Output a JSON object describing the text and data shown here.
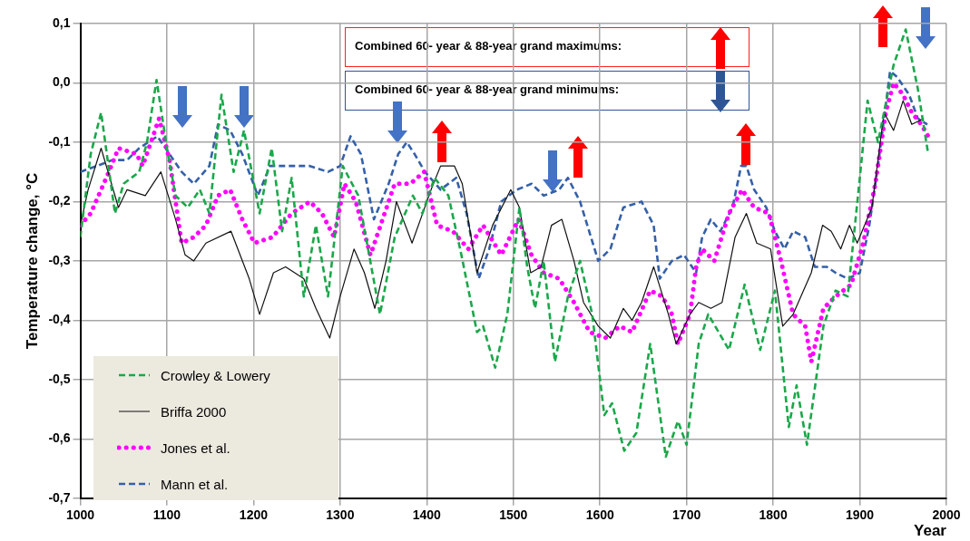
{
  "chart_data": {
    "type": "line",
    "xlabel": "Year",
    "ylabel": "Temperature change, °C",
    "annotations": [
      "Combined 60- year & 88-year grand maximums:",
      "Combined 60- year & 88-year grand minimums:"
    ],
    "xlim": [
      1000,
      2000
    ],
    "xticks": [
      1000,
      1100,
      1200,
      1300,
      1400,
      1500,
      1600,
      1700,
      1800,
      1900,
      2000
    ],
    "ylim": [
      -0.7,
      0.1
    ],
    "yticks": [
      {
        "value": -0.7,
        "label": "-0,7"
      },
      {
        "value": -0.6,
        "label": "-0,6"
      },
      {
        "value": -0.5,
        "label": "-0,5"
      },
      {
        "value": -0.4,
        "label": "-0,4"
      },
      {
        "value": -0.3,
        "label": "-0,3"
      },
      {
        "value": -0.2,
        "label": "-0,2"
      },
      {
        "value": -0.1,
        "label": "-0,1"
      },
      {
        "value": 0,
        "label": "0,0"
      },
      {
        "value": 0.1,
        "label": "0,1"
      }
    ],
    "grid": true,
    "legend": "bottom left",
    "marker": "none",
    "series": [
      {
        "name": "Crowley & Lowery",
        "color": "#1aa84a",
        "line_style": "dashed",
        "x": [
          1000,
          1012,
          1024,
          1040,
          1050,
          1068,
          1077,
          1088,
          1100,
          1110,
          1124,
          1138,
          1149,
          1163,
          1177,
          1189,
          1207,
          1221,
          1233,
          1244,
          1258,
          1272,
          1286,
          1303,
          1321,
          1346,
          1363,
          1384,
          1395,
          1409,
          1425,
          1440,
          1458,
          1465,
          1479,
          1493,
          1507,
          1516,
          1525,
          1535,
          1548,
          1563,
          1577,
          1591,
          1605,
          1614,
          1628,
          1642,
          1658,
          1676,
          1690,
          1700,
          1714,
          1725,
          1749,
          1767,
          1785,
          1802,
          1818,
          1827,
          1839,
          1858,
          1872,
          1886,
          1900,
          1909,
          1921,
          1939,
          1953,
          1967,
          1979
        ],
        "values": [
          -0.26,
          -0.12,
          -0.05,
          -0.22,
          -0.17,
          -0.15,
          -0.1,
          0.005,
          -0.11,
          -0.19,
          -0.21,
          -0.18,
          -0.22,
          -0.02,
          -0.15,
          -0.08,
          -0.22,
          -0.11,
          -0.25,
          -0.16,
          -0.36,
          -0.24,
          -0.36,
          -0.14,
          -0.19,
          -0.39,
          -0.26,
          -0.19,
          -0.22,
          -0.16,
          -0.19,
          -0.29,
          -0.42,
          -0.41,
          -0.48,
          -0.39,
          -0.21,
          -0.31,
          -0.38,
          -0.3,
          -0.47,
          -0.36,
          -0.3,
          -0.39,
          -0.56,
          -0.54,
          -0.62,
          -0.59,
          -0.44,
          -0.63,
          -0.57,
          -0.61,
          -0.44,
          -0.39,
          -0.45,
          -0.34,
          -0.45,
          -0.35,
          -0.58,
          -0.51,
          -0.61,
          -0.41,
          -0.35,
          -0.36,
          -0.16,
          -0.03,
          -0.1,
          0.03,
          0.09,
          -0.01,
          -0.12
        ]
      },
      {
        "name": "Briffa 2000",
        "color": "#111111",
        "line_style": "solid",
        "x": [
          1000,
          1009,
          1024,
          1044,
          1054,
          1075,
          1093,
          1110,
          1121,
          1131,
          1145,
          1174,
          1195,
          1207,
          1223,
          1237,
          1258,
          1272,
          1288,
          1300,
          1316,
          1328,
          1340,
          1353,
          1365,
          1383,
          1405,
          1416,
          1432,
          1441,
          1458,
          1476,
          1497,
          1507,
          1520,
          1532,
          1544,
          1556,
          1570,
          1581,
          1598,
          1612,
          1627,
          1637,
          1648,
          1662,
          1679,
          1688,
          1704,
          1714,
          1728,
          1741,
          1756,
          1769,
          1781,
          1797,
          1811,
          1823,
          1844,
          1857,
          1867,
          1878,
          1888,
          1897,
          1914,
          1928,
          1939,
          1950,
          1960,
          1974
        ],
        "values": [
          -0.24,
          -0.18,
          -0.11,
          -0.21,
          -0.18,
          -0.19,
          -0.15,
          -0.23,
          -0.29,
          -0.3,
          -0.27,
          -0.25,
          -0.33,
          -0.39,
          -0.32,
          -0.31,
          -0.33,
          -0.38,
          -0.43,
          -0.36,
          -0.28,
          -0.32,
          -0.38,
          -0.3,
          -0.2,
          -0.27,
          -0.18,
          -0.14,
          -0.14,
          -0.17,
          -0.32,
          -0.24,
          -0.18,
          -0.21,
          -0.32,
          -0.31,
          -0.24,
          -0.23,
          -0.3,
          -0.37,
          -0.41,
          -0.43,
          -0.38,
          -0.4,
          -0.37,
          -0.31,
          -0.39,
          -0.44,
          -0.39,
          -0.37,
          -0.38,
          -0.37,
          -0.26,
          -0.22,
          -0.27,
          -0.28,
          -0.41,
          -0.39,
          -0.32,
          -0.24,
          -0.25,
          -0.28,
          -0.24,
          -0.27,
          -0.21,
          -0.05,
          -0.08,
          -0.03,
          -0.07,
          -0.06
        ]
      },
      {
        "name": "Jones et al.",
        "color": "#ff00ff",
        "line_style": "dotted",
        "x": [
          1000,
          1012,
          1033,
          1044,
          1065,
          1072,
          1091,
          1103,
          1117,
          1131,
          1145,
          1159,
          1173,
          1187,
          1201,
          1222,
          1244,
          1265,
          1279,
          1293,
          1305,
          1318,
          1335,
          1349,
          1363,
          1381,
          1397,
          1412,
          1430,
          1448,
          1465,
          1486,
          1506,
          1521,
          1535,
          1553,
          1570,
          1588,
          1606,
          1623,
          1637,
          1658,
          1672,
          1683,
          1690,
          1704,
          1711,
          1718,
          1732,
          1749,
          1764,
          1778,
          1795,
          1809,
          1823,
          1837,
          1844,
          1858,
          1872,
          1890,
          1904,
          1918,
          1930,
          1939,
          1950,
          1960,
          1971,
          1979
        ],
        "values": [
          -0.24,
          -0.22,
          -0.15,
          -0.11,
          -0.12,
          -0.14,
          -0.06,
          -0.13,
          -0.27,
          -0.26,
          -0.24,
          -0.19,
          -0.18,
          -0.23,
          -0.27,
          -0.26,
          -0.22,
          -0.2,
          -0.22,
          -0.26,
          -0.17,
          -0.2,
          -0.29,
          -0.23,
          -0.17,
          -0.17,
          -0.15,
          -0.24,
          -0.25,
          -0.28,
          -0.24,
          -0.29,
          -0.23,
          -0.29,
          -0.32,
          -0.33,
          -0.37,
          -0.42,
          -0.43,
          -0.41,
          -0.42,
          -0.35,
          -0.36,
          -0.39,
          -0.44,
          -0.39,
          -0.31,
          -0.28,
          -0.3,
          -0.22,
          -0.18,
          -0.21,
          -0.22,
          -0.3,
          -0.39,
          -0.41,
          -0.47,
          -0.38,
          -0.36,
          -0.34,
          -0.27,
          -0.17,
          -0.05,
          0,
          -0.02,
          -0.05,
          -0.07,
          -0.09
        ]
      },
      {
        "name": "Mann et al.",
        "color": "#3560a8",
        "line_style": "dashed",
        "x": [
          1000,
          1019,
          1037,
          1054,
          1068,
          1089,
          1103,
          1117,
          1131,
          1149,
          1159,
          1173,
          1187,
          1205,
          1219,
          1244,
          1265,
          1286,
          1300,
          1312,
          1324,
          1339,
          1356,
          1367,
          1377,
          1386,
          1398,
          1416,
          1434,
          1446,
          1460,
          1472,
          1486,
          1504,
          1521,
          1535,
          1553,
          1563,
          1577,
          1598,
          1612,
          1627,
          1648,
          1662,
          1669,
          1683,
          1697,
          1711,
          1718,
          1728,
          1739,
          1753,
          1763,
          1769,
          1778,
          1792,
          1802,
          1813,
          1823,
          1837,
          1848,
          1862,
          1872,
          1886,
          1900,
          1911,
          1921,
          1935,
          1943,
          1957,
          1967,
          1978
        ],
        "values": [
          -0.15,
          -0.14,
          -0.13,
          -0.13,
          -0.11,
          -0.09,
          -0.12,
          -0.15,
          -0.17,
          -0.14,
          -0.07,
          -0.08,
          -0.12,
          -0.19,
          -0.14,
          -0.14,
          -0.14,
          -0.15,
          -0.14,
          -0.09,
          -0.12,
          -0.23,
          -0.17,
          -0.12,
          -0.1,
          -0.12,
          -0.15,
          -0.18,
          -0.16,
          -0.22,
          -0.33,
          -0.28,
          -0.2,
          -0.18,
          -0.17,
          -0.19,
          -0.18,
          -0.16,
          -0.2,
          -0.3,
          -0.28,
          -0.21,
          -0.2,
          -0.24,
          -0.33,
          -0.3,
          -0.29,
          -0.32,
          -0.26,
          -0.23,
          -0.25,
          -0.21,
          -0.14,
          -0.14,
          -0.18,
          -0.21,
          -0.25,
          -0.28,
          -0.25,
          -0.26,
          -0.31,
          -0.31,
          -0.32,
          -0.33,
          -0.32,
          -0.24,
          -0.14,
          0.02,
          0.01,
          -0.02,
          -0.06,
          -0.07
        ]
      }
    ]
  }
}
